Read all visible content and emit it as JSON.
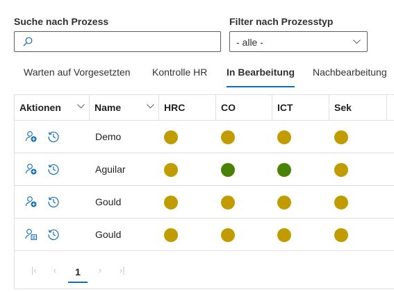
{
  "search": {
    "label": "Suche nach Prozess",
    "placeholder": "",
    "value": ""
  },
  "filter": {
    "label": "Filter nach Prozesstyp",
    "selected": "- alle -"
  },
  "tabs": [
    {
      "label": "Warten auf Vorgesetzten",
      "active": false
    },
    {
      "label": "Kontrolle HR",
      "active": false
    },
    {
      "label": "In Bearbeitung",
      "active": true
    },
    {
      "label": "Nachbearbeitung",
      "active": false
    }
  ],
  "grid": {
    "columns": [
      "Aktionen",
      "Name",
      "HRC",
      "CO",
      "ICT",
      "Sek"
    ],
    "rows": [
      {
        "action_icon": "person-add-icon",
        "name": "Demo",
        "status": [
          "yellow",
          "yellow",
          "yellow",
          "yellow"
        ]
      },
      {
        "action_icon": "person-add-icon",
        "name": "Aguilar",
        "status": [
          "yellow",
          "green",
          "green",
          "yellow"
        ]
      },
      {
        "action_icon": "person-add-icon",
        "name": "Gould",
        "status": [
          "yellow",
          "yellow",
          "yellow",
          "yellow"
        ]
      },
      {
        "action_icon": "person-form-icon",
        "name": "Gould",
        "status": [
          "yellow",
          "yellow",
          "yellow",
          "yellow"
        ]
      }
    ]
  },
  "pagination": {
    "current_page": "1"
  },
  "colors": {
    "yellow": "#c19c00",
    "green": "#498205",
    "accent": "#0f6cbd"
  }
}
